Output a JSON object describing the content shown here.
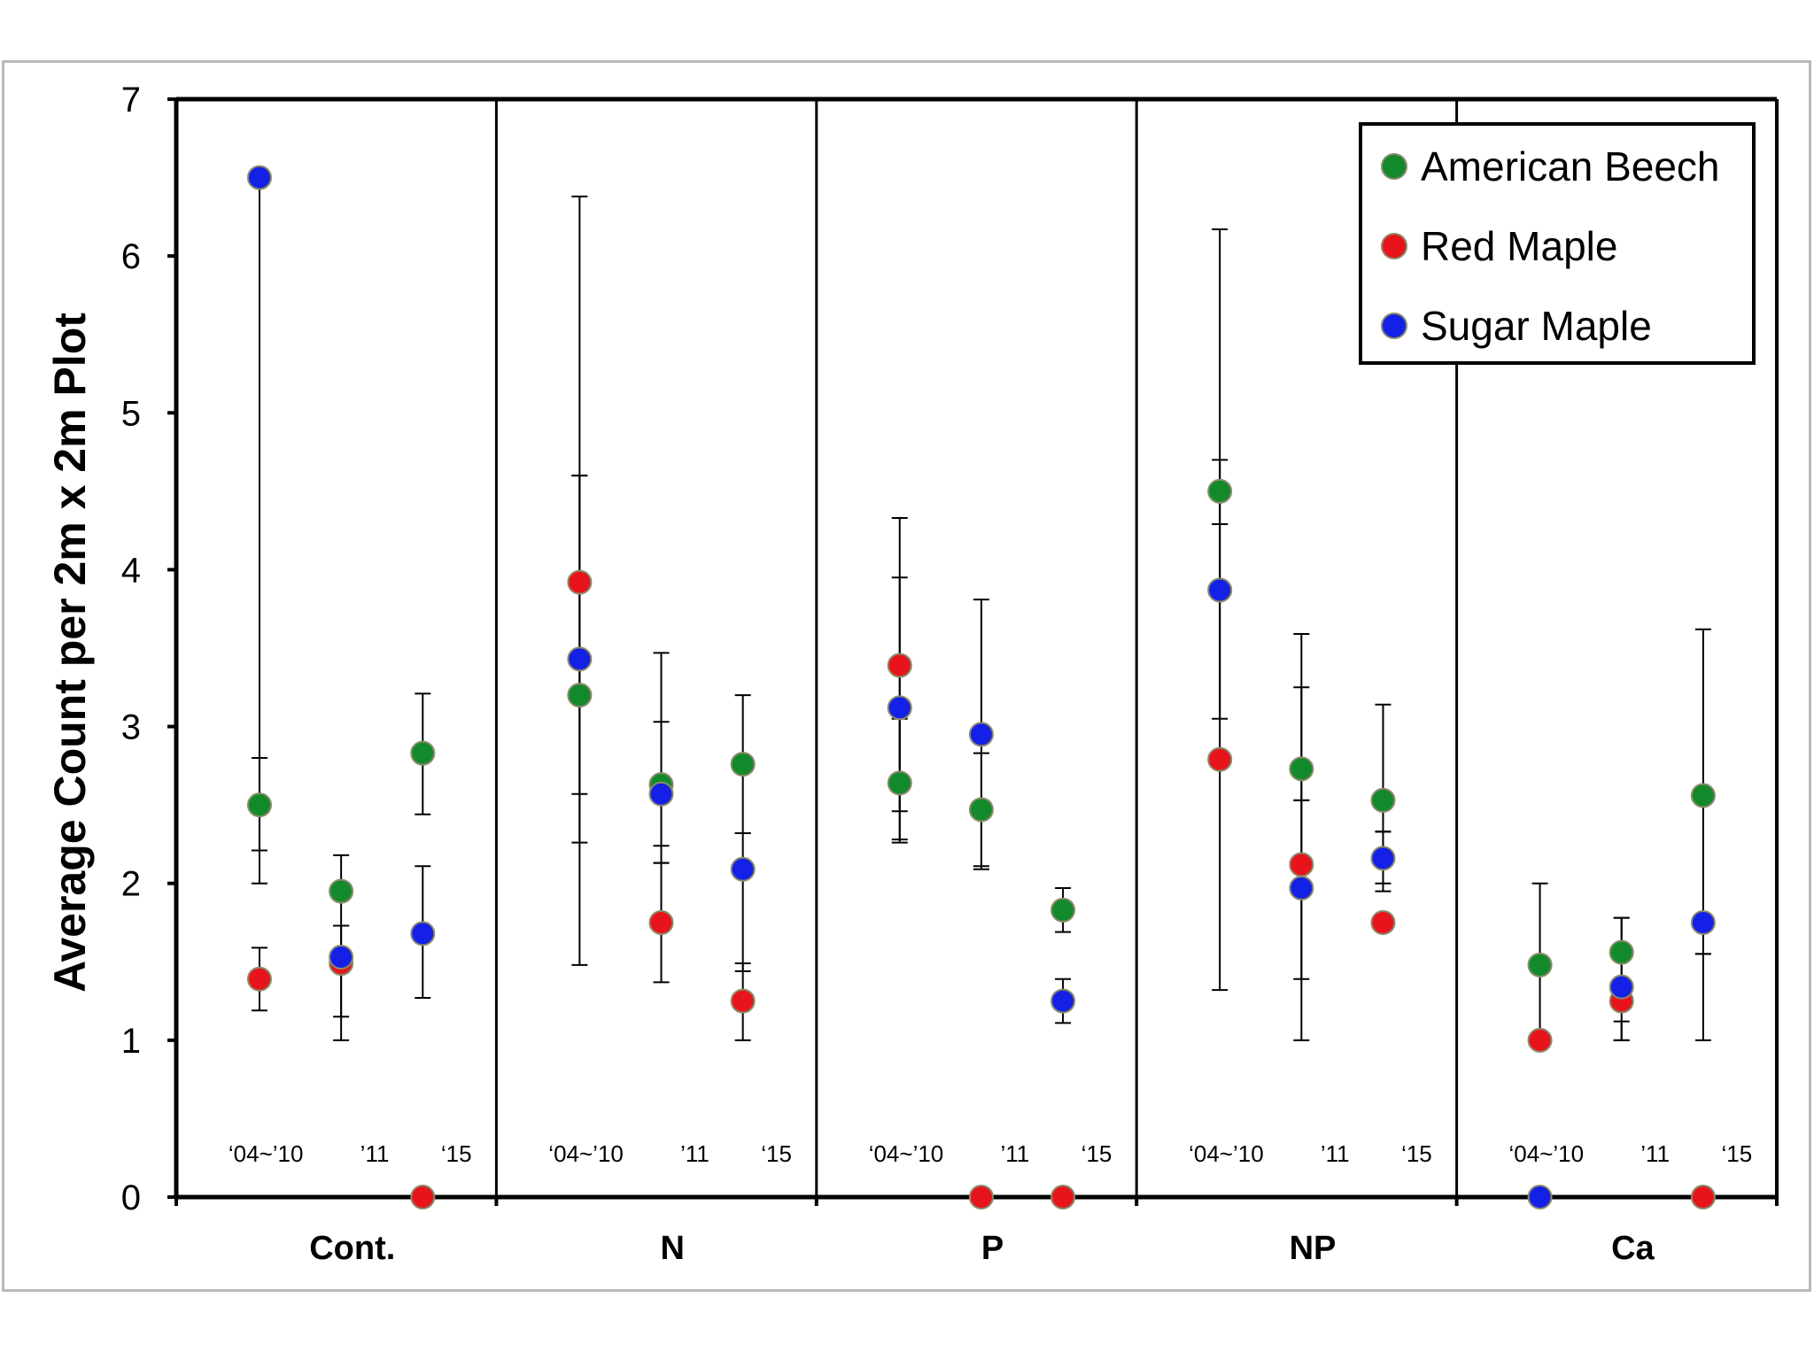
{
  "chart_data": {
    "type": "scatter",
    "title": "",
    "ylabel": "Average Count per 2m x 2m Plot",
    "xlabel": "",
    "ylim": [
      0,
      7
    ],
    "yticks": [
      "0",
      "1",
      "2",
      "3",
      "4",
      "5",
      "6",
      "7"
    ],
    "groups": [
      "Cont.",
      "N",
      "P",
      "NP",
      "Ca"
    ],
    "periods": [
      "‘04~’10",
      "’11",
      "‘15"
    ],
    "legend": {
      "position": "top-right"
    },
    "series": [
      {
        "name": "American Beech",
        "color": "#128a2c",
        "points": [
          {
            "group": "Cont.",
            "period": 0,
            "y": 2.5,
            "err_low": 2.0,
            "err_high": 2.8
          },
          {
            "group": "Cont.",
            "period": 1,
            "y": 1.95,
            "err_low": 1.73,
            "err_high": 2.18
          },
          {
            "group": "Cont.",
            "period": 2,
            "y": 2.83,
            "err_low": 2.44,
            "err_high": 3.21
          },
          {
            "group": "N",
            "period": 0,
            "y": 3.2,
            "err_low": 2.26,
            "err_high": 4.6
          },
          {
            "group": "N",
            "period": 1,
            "y": 2.63,
            "err_low": 2.24,
            "err_high": 3.03
          },
          {
            "group": "N",
            "period": 2,
            "y": 2.76,
            "err_low": 2.32,
            "err_high": 3.2
          },
          {
            "group": "P",
            "period": 0,
            "y": 2.64,
            "err_low": 2.28,
            "err_high": 3.05
          },
          {
            "group": "P",
            "period": 1,
            "y": 2.47,
            "err_low": 2.11,
            "err_high": 2.83
          },
          {
            "group": "P",
            "period": 2,
            "y": 1.83,
            "err_low": 1.69,
            "err_high": 1.97
          },
          {
            "group": "NP",
            "period": 0,
            "y": 4.5,
            "err_low": 4.29,
            "err_high": 4.7
          },
          {
            "group": "NP",
            "period": 1,
            "y": 2.73,
            "err_low": 2.53,
            "err_high": 3.25
          },
          {
            "group": "NP",
            "period": 2,
            "y": 2.53,
            "err_low": 2.33,
            "err_high": 3.14
          },
          {
            "group": "Ca",
            "period": 0,
            "y": 1.48,
            "err_low": 1.0,
            "err_high": 2.0
          },
          {
            "group": "Ca",
            "period": 1,
            "y": 1.56,
            "err_low": 1.35,
            "err_high": 1.78
          },
          {
            "group": "Ca",
            "period": 2,
            "y": 2.56,
            "err_low": 1.55,
            "err_high": 3.62
          }
        ]
      },
      {
        "name": "Red Maple",
        "color": "#e8141b",
        "points": [
          {
            "group": "Cont.",
            "period": 0,
            "y": 1.39,
            "err_low": 1.19,
            "err_high": 1.59
          },
          {
            "group": "Cont.",
            "period": 1,
            "y": 1.49,
            "err_low": 1.15,
            "err_high": 1.73
          },
          {
            "group": "Cont.",
            "period": 2,
            "y": 0.0
          },
          {
            "group": "N",
            "period": 0,
            "y": 3.92,
            "err_low": 2.57,
            "err_high": 6.38
          },
          {
            "group": "N",
            "period": 1,
            "y": 1.75,
            "err_low": 1.37,
            "err_high": 2.13
          },
          {
            "group": "N",
            "period": 2,
            "y": 1.25,
            "err_low": 1.0,
            "err_high": 1.49
          },
          {
            "group": "P",
            "period": 0,
            "y": 3.39,
            "err_low": 2.46,
            "err_high": 4.33
          },
          {
            "group": "P",
            "period": 1,
            "y": 0.0
          },
          {
            "group": "P",
            "period": 2,
            "y": 0.0
          },
          {
            "group": "NP",
            "period": 0,
            "y": 2.79,
            "err_low": 1.32,
            "err_high": 4.29
          },
          {
            "group": "NP",
            "period": 1,
            "y": 2.12,
            "err_low": 1.39,
            "err_high": 2.53
          },
          {
            "group": "NP",
            "period": 2,
            "y": 1.75,
            "err_low": 1.95,
            "err_high": 2.33
          },
          {
            "group": "Ca",
            "period": 0,
            "y": 1.0
          },
          {
            "group": "Ca",
            "period": 1,
            "y": 1.25,
            "err_low": 1.0,
            "err_high": 1.12
          },
          {
            "group": "Ca",
            "period": 2,
            "y": 0.0
          }
        ]
      },
      {
        "name": "Sugar Maple",
        "color": "#1420e6",
        "points": [
          {
            "group": "Cont.",
            "period": 0,
            "y": 6.5,
            "err_low": 2.21,
            "err_high": 6.5
          },
          {
            "group": "Cont.",
            "period": 1,
            "y": 1.53,
            "err_low": 1.0,
            "err_high": 1.73
          },
          {
            "group": "Cont.",
            "period": 2,
            "y": 1.68,
            "err_low": 1.27,
            "err_high": 2.11
          },
          {
            "group": "N",
            "period": 0,
            "y": 3.43,
            "err_low": 1.48,
            "err_high": 4.6
          },
          {
            "group": "N",
            "period": 1,
            "y": 2.57,
            "err_low": 2.13,
            "err_high": 3.47
          },
          {
            "group": "N",
            "period": 2,
            "y": 2.09,
            "err_low": 1.44,
            "err_high": 2.32
          },
          {
            "group": "P",
            "period": 0,
            "y": 3.12,
            "err_low": 2.26,
            "err_high": 3.95
          },
          {
            "group": "P",
            "period": 1,
            "y": 2.95,
            "err_low": 2.09,
            "err_high": 3.81
          },
          {
            "group": "P",
            "period": 2,
            "y": 1.25,
            "err_low": 1.11,
            "err_high": 1.39
          },
          {
            "group": "NP",
            "period": 0,
            "y": 3.87,
            "err_low": 3.05,
            "err_high": 6.17
          },
          {
            "group": "NP",
            "period": 1,
            "y": 1.97,
            "err_low": 1.0,
            "err_high": 3.59
          },
          {
            "group": "NP",
            "period": 2,
            "y": 2.16,
            "err_low": 2.0,
            "err_high": 2.33
          },
          {
            "group": "Ca",
            "period": 0,
            "y": 0.0
          },
          {
            "group": "Ca",
            "period": 1,
            "y": 1.34,
            "err_low": 1.0,
            "err_high": 1.78
          },
          {
            "group": "Ca",
            "period": 2,
            "y": 1.75,
            "err_low": 1.0,
            "err_high": 1.55
          }
        ]
      }
    ]
  }
}
